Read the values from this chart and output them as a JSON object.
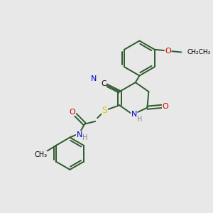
{
  "bg_color": "#e8e8e8",
  "bond_color": "#2d5a2d",
  "atom_colors": {
    "N": "#0000cc",
    "O": "#cc0000",
    "S": "#cccc00",
    "C": "#000000",
    "H": "#888888"
  },
  "figsize": [
    3.0,
    3.0
  ],
  "dpi": 100
}
